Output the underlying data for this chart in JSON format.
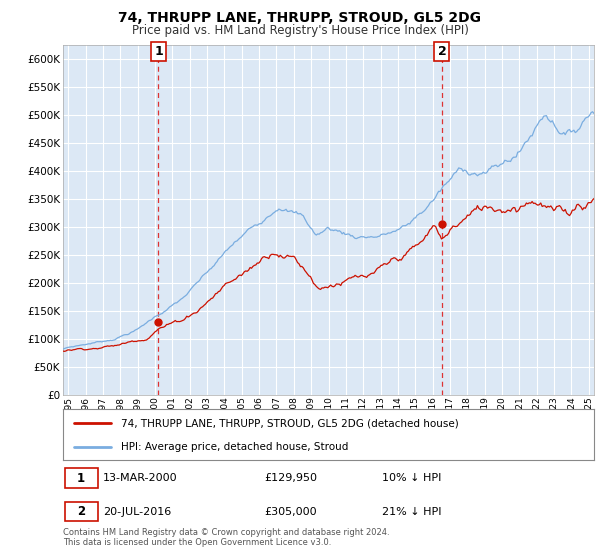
{
  "title": "74, THRUPP LANE, THRUPP, STROUD, GL5 2DG",
  "subtitle": "Price paid vs. HM Land Registry's House Price Index (HPI)",
  "ytick_values": [
    0,
    50000,
    100000,
    150000,
    200000,
    250000,
    300000,
    350000,
    400000,
    450000,
    500000,
    550000,
    600000
  ],
  "ylim": [
    0,
    625000
  ],
  "xlim_start": 1994.7,
  "xlim_end": 2025.3,
  "hpi_color": "#7aade0",
  "price_color": "#cc1100",
  "marker1_date": 2000.2,
  "marker1_price": 129950,
  "marker1_label": "1",
  "marker2_date": 2016.54,
  "marker2_price": 305000,
  "marker2_label": "2",
  "legend_line1": "74, THRUPP LANE, THRUPP, STROUD, GL5 2DG (detached house)",
  "legend_line2": "HPI: Average price, detached house, Stroud",
  "marker1_date_str": "13-MAR-2000",
  "marker1_price_str": "£129,950",
  "marker1_hpi_str": "10% ↓ HPI",
  "marker2_date_str": "20-JUL-2016",
  "marker2_price_str": "£305,000",
  "marker2_hpi_str": "21% ↓ HPI",
  "footer": "Contains HM Land Registry data © Crown copyright and database right 2024.\nThis data is licensed under the Open Government Licence v3.0.",
  "background_color": "#ffffff",
  "plot_bg_color": "#dce8f5",
  "grid_color": "#ffffff",
  "marker_box_color": "#cc1100",
  "marker_dashed_color": "#dd3333"
}
